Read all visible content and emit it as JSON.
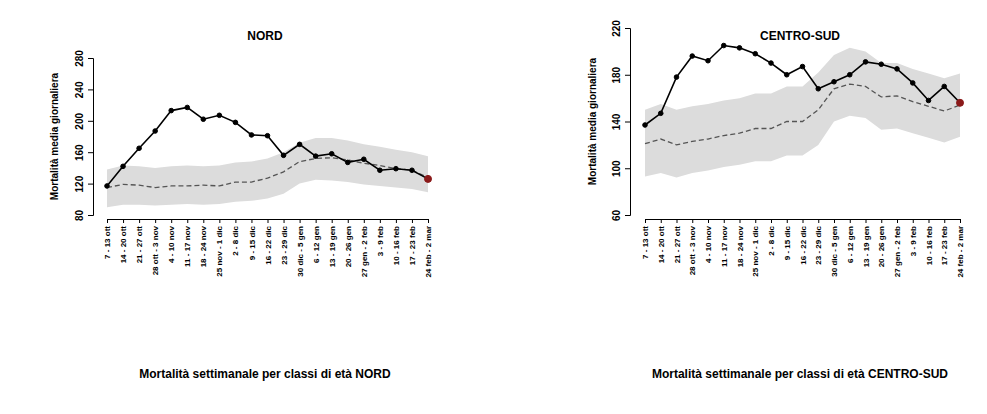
{
  "chart_data": [
    {
      "type": "line",
      "title": "NORD",
      "ylabel": "Mortalità media giornaliera",
      "annotations": [
        "Mortalità settimanale per classi di età NORD"
      ],
      "categories": [
        "7 - 13 ott",
        "14 - 20 ott",
        "21 - 27 ott",
        "28 ott - 3 nov",
        "4 - 10 nov",
        "11 - 17 nov",
        "18 - 24 nov",
        "25 nov - 1 dic",
        "2 - 8 dic",
        "9 - 15 dic",
        "16 - 22 dic",
        "23 - 29 dic",
        "30 dic - 5 gen",
        "6 - 12 gen",
        "13 - 19 gen",
        "20 - 26 gen",
        "27 gen - 2 feb",
        "3 - 9 feb",
        "10 - 16 feb",
        "17 - 23 feb",
        "24 feb - 2 mar"
      ],
      "ylim": [
        80,
        280
      ],
      "yticks": [
        80,
        120,
        160,
        200,
        240,
        280
      ],
      "series": [
        {
          "type": "area",
          "color": "#dcdcdc",
          "lower": [
            90,
            93,
            93,
            92,
            93,
            94,
            93,
            94,
            97,
            98,
            101,
            107,
            120,
            125,
            124,
            122,
            119,
            117,
            115,
            113,
            109
          ],
          "upper": [
            138,
            143,
            142,
            140,
            142,
            143,
            142,
            143,
            147,
            148,
            152,
            160,
            172,
            178,
            178,
            175,
            170,
            167,
            163,
            160,
            155
          ]
        },
        {
          "type": "line",
          "color": "#555555",
          "line_style": "dashed",
          "values": [
            115,
            119,
            118,
            115,
            117,
            117,
            118,
            117,
            122,
            122,
            127,
            135,
            148,
            152,
            153,
            150,
            146,
            143,
            139,
            137,
            128
          ]
        },
        {
          "type": "line",
          "color": "#000000",
          "line_style": "solid",
          "marker": "circle",
          "values": [
            117,
            142,
            165,
            187,
            213,
            217,
            202,
            207,
            198,
            182,
            181,
            156,
            170,
            155,
            158,
            147,
            151,
            137,
            139,
            137,
            126
          ],
          "colors": [
            "#000000",
            "#000000",
            "#000000",
            "#000000",
            "#000000",
            "#000000",
            "#000000",
            "#000000",
            "#000000",
            "#000000",
            "#000000",
            "#000000",
            "#000000",
            "#000000",
            "#000000",
            "#000000",
            "#000000",
            "#000000",
            "#000000",
            "#000000",
            "#8b1a1a"
          ]
        }
      ]
    },
    {
      "type": "line",
      "title": "CENTRO-SUD",
      "ylabel": "Mortalità media giornaliera",
      "annotations": [
        "Mortalità settimanale per classi di età CENTRO-SUD"
      ],
      "categories": [
        "7 - 13 ott",
        "14 - 20 ott",
        "21 - 27 ott",
        "28 ott - 3 nov",
        "4 - 10 nov",
        "11 - 17 nov",
        "18 - 24 nov",
        "25 nov - 1 dic",
        "2 - 8 dic",
        "9 - 15 dic",
        "16 - 22 dic",
        "23 - 29 dic",
        "30 dic - 5 gen",
        "6 - 12 gen",
        "13 - 19 gen",
        "20 - 26 gen",
        "27 gen - 2 feb",
        "3 - 9 feb",
        "10 - 16 feb",
        "17 - 23 feb",
        "24 feb - 2 mar"
      ],
      "ylim": [
        60,
        220
      ],
      "yticks": [
        60,
        100,
        140,
        180,
        220
      ],
      "series": [
        {
          "type": "area",
          "color": "#dcdcdc",
          "lower": [
            93,
            96,
            92,
            96,
            98,
            101,
            103,
            106,
            106,
            111,
            111,
            120,
            140,
            145,
            143,
            133,
            134,
            130,
            126,
            122,
            127
          ],
          "upper": [
            150,
            155,
            150,
            153,
            155,
            158,
            160,
            164,
            164,
            170,
            170,
            182,
            197,
            203,
            200,
            190,
            190,
            185,
            181,
            177,
            181
          ]
        },
        {
          "type": "line",
          "color": "#555555",
          "line_style": "dashed",
          "values": [
            121,
            125,
            120,
            123,
            125,
            128,
            130,
            134,
            134,
            140,
            140,
            150,
            168,
            172,
            170,
            161,
            162,
            157,
            153,
            149,
            154
          ]
        },
        {
          "type": "line",
          "color": "#000000",
          "line_style": "solid",
          "marker": "circle",
          "values": [
            137,
            147,
            178,
            196,
            192,
            205,
            203,
            198,
            190,
            180,
            187,
            168,
            174,
            180,
            191,
            189,
            185,
            173,
            158,
            170,
            156
          ],
          "colors": [
            "#000000",
            "#000000",
            "#000000",
            "#000000",
            "#000000",
            "#000000",
            "#000000",
            "#000000",
            "#000000",
            "#000000",
            "#000000",
            "#000000",
            "#000000",
            "#000000",
            "#000000",
            "#000000",
            "#000000",
            "#000000",
            "#000000",
            "#000000",
            "#8b1a1a"
          ]
        }
      ]
    }
  ]
}
